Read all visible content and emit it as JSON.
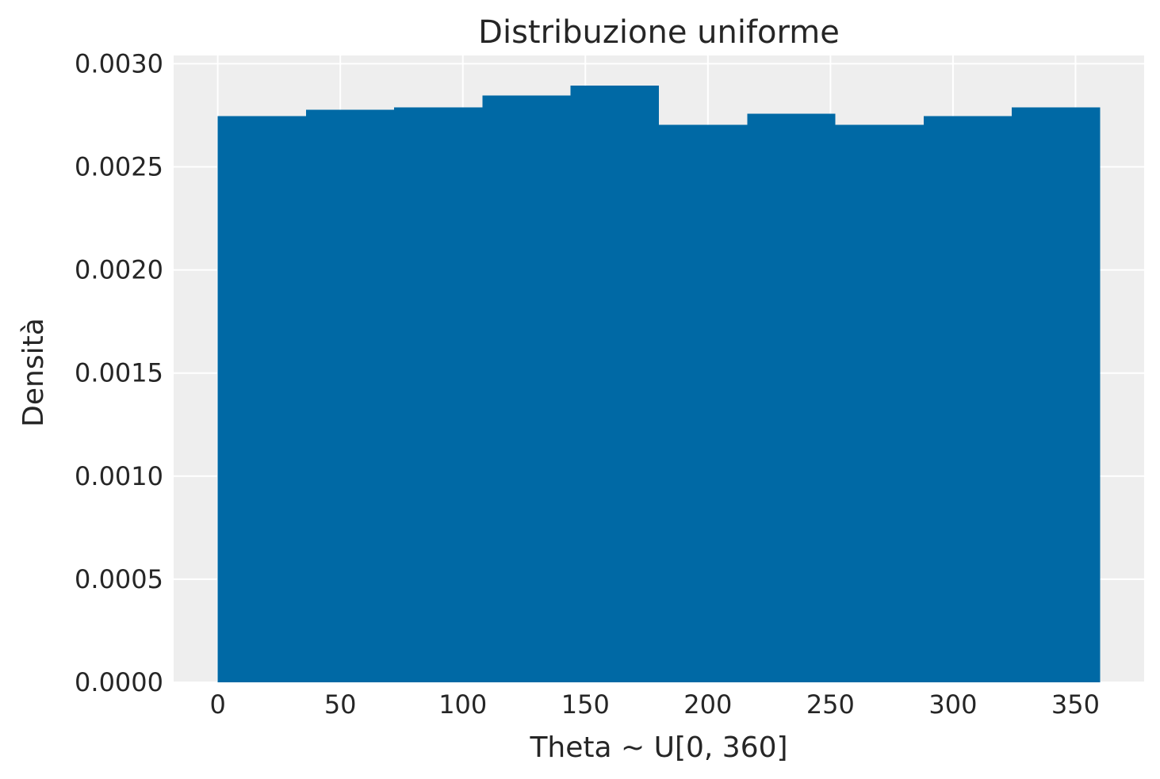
{
  "chart_data": {
    "type": "bar",
    "subtype": "histogram",
    "title": "Distribuzione uniforme",
    "xlabel": "Theta ~ U[0, 360]",
    "ylabel": "Densità",
    "bin_edges": [
      0,
      36,
      72,
      108,
      144,
      180,
      216,
      252,
      288,
      324,
      360
    ],
    "values": [
      0.002746,
      0.002777,
      0.002788,
      0.002846,
      0.002894,
      0.002704,
      0.002757,
      0.002704,
      0.002746,
      0.002788
    ],
    "xlim": [
      -18,
      378
    ],
    "ylim": [
      0,
      0.00304
    ],
    "xticks": [
      0,
      50,
      100,
      150,
      200,
      250,
      300,
      350
    ],
    "xtick_labels": [
      "0",
      "50",
      "100",
      "150",
      "200",
      "250",
      "300",
      "350"
    ],
    "yticks": [
      0,
      0.0005,
      0.001,
      0.0015,
      0.002,
      0.0025,
      0.003
    ],
    "ytick_labels": [
      "0.0000",
      "0.0005",
      "0.0010",
      "0.0015",
      "0.0020",
      "0.0025",
      "0.0030"
    ],
    "grid": true,
    "colors": {
      "bar": "#0069a5",
      "background": "#eeeeee",
      "grid": "#ffffff",
      "text": "#262626"
    }
  }
}
